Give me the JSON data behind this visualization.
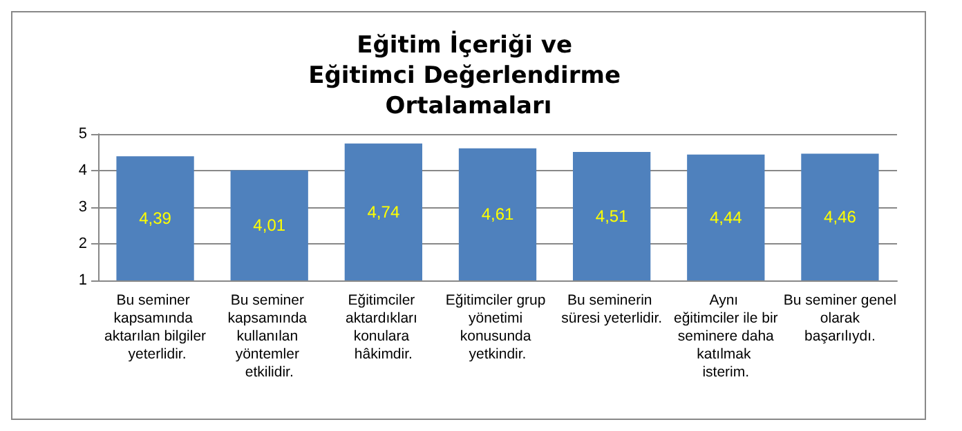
{
  "chart_data": {
    "type": "bar",
    "title": "Eğitim İçeriği ve Eğitimci Değerlendirme Ortalamaları",
    "categories": [
      "Bu seminer kapsamında aktarılan bilgiler yeterlidir.",
      "Bu seminer kapsamında kullanılan yöntemler etkilidir.",
      "Eğitimciler aktardıkları konulara hâkimdir.",
      "Eğitimciler grup yönetimi konusunda yetkindir.",
      "Bu seminerin süresi yeterlidir.",
      "Aynı eğitimciler ile bir seminere daha katılmak isterim.",
      "Bu seminer genel olarak başarılıydı."
    ],
    "values": [
      4.39,
      4.01,
      4.74,
      4.61,
      4.51,
      4.44,
      4.46
    ],
    "value_labels": [
      "4,39",
      "4,01",
      "4,74",
      "4,61",
      "4,51",
      "4,44",
      "4,46"
    ],
    "color": "#4f81bd",
    "ylim": [
      1,
      5
    ],
    "yticks": [
      1,
      2,
      3,
      4,
      5
    ],
    "grid": "y"
  }
}
